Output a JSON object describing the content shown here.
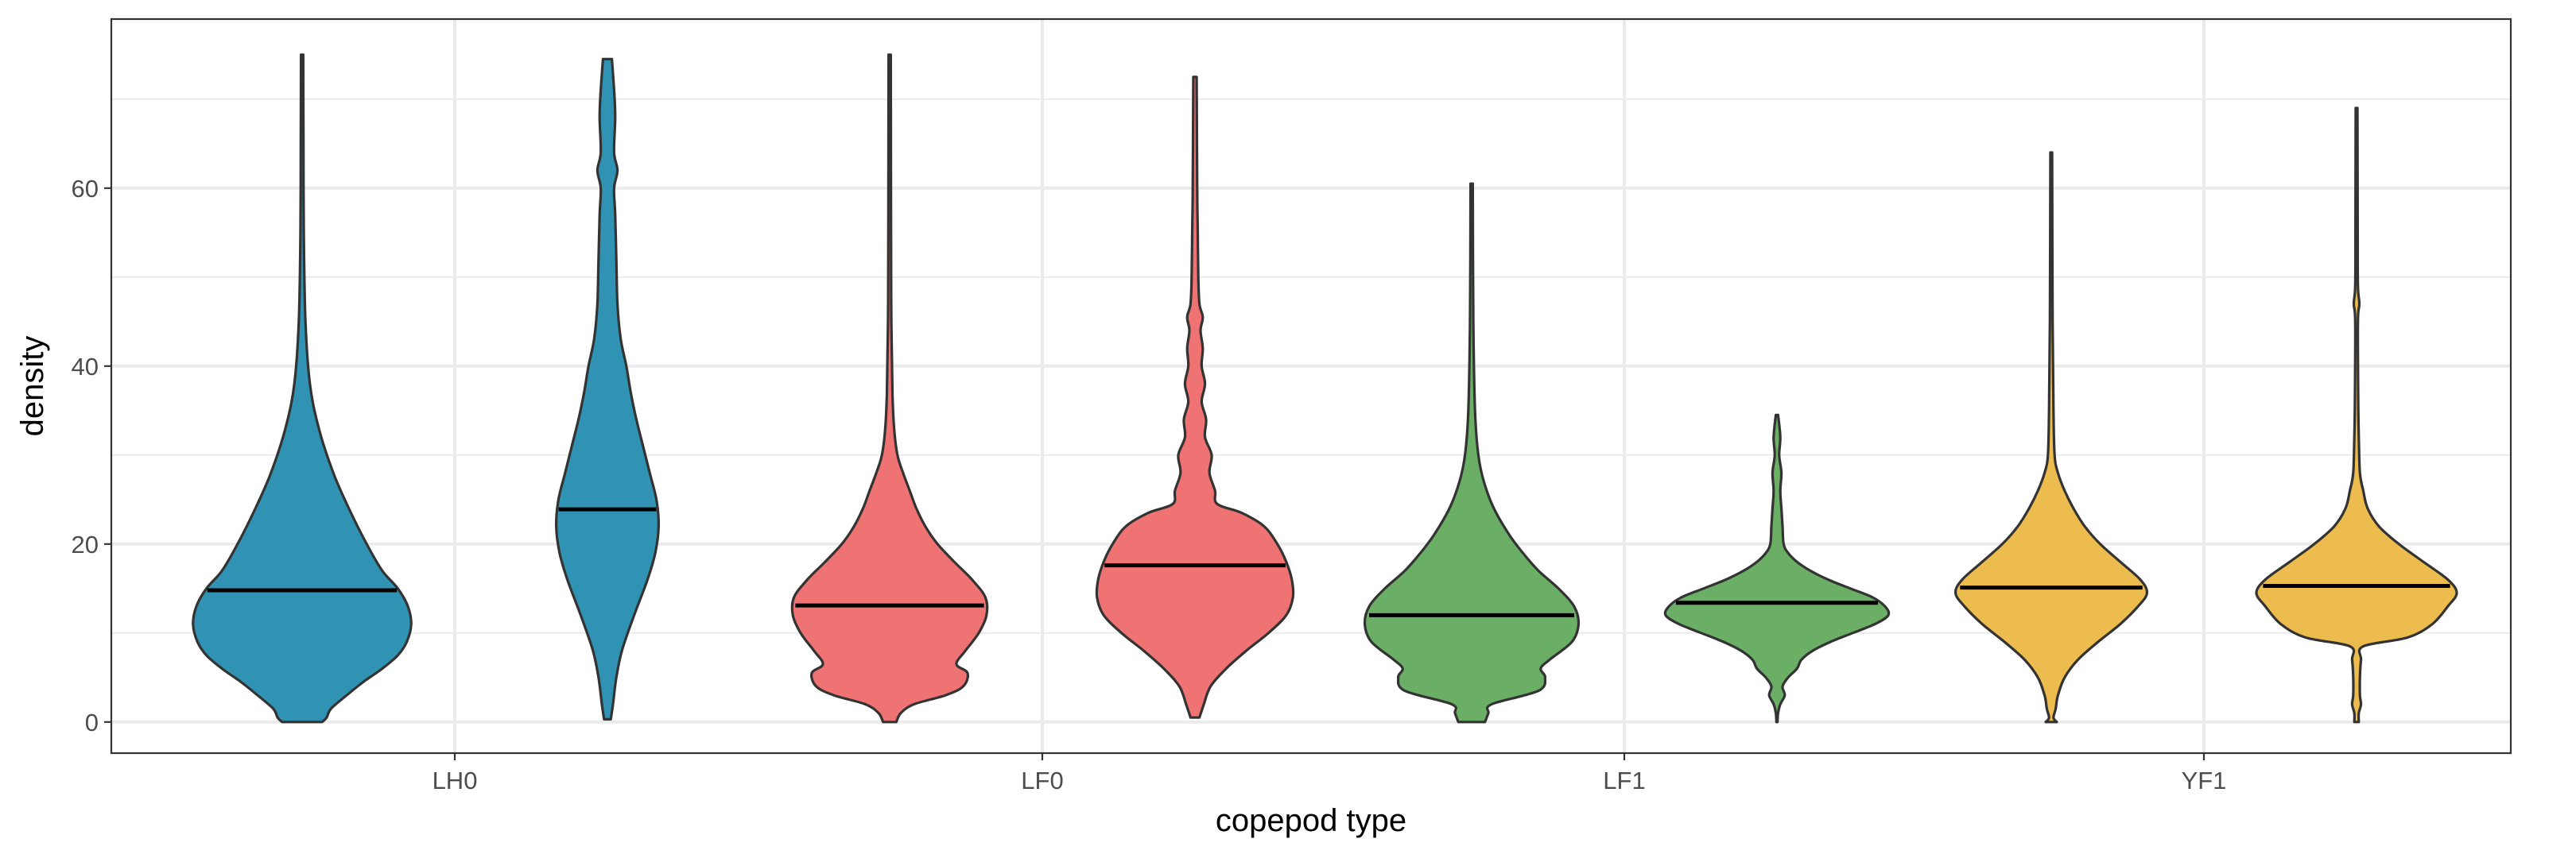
{
  "chart_data": {
    "type": "violin",
    "xlabel": "copepod type",
    "ylabel": "density",
    "categories": [
      "LH0",
      "LF0",
      "LF1",
      "YF1"
    ],
    "ylim": [
      -3.5,
      79
    ],
    "yticks": [
      0,
      20,
      40,
      60
    ],
    "ytick_labels": [
      "0",
      "20",
      "40",
      "60"
    ],
    "grid": true,
    "legend": "none",
    "violins": [
      {
        "category": "LH0",
        "offset": -1,
        "color": "#3193B3",
        "min": 0,
        "max": 75,
        "median": 14.8,
        "profile": [
          [
            0,
            0.18
          ],
          [
            0.5,
            0.22
          ],
          [
            1.5,
            0.26
          ],
          [
            3,
            0.4
          ],
          [
            4.5,
            0.55
          ],
          [
            6,
            0.72
          ],
          [
            7.5,
            0.86
          ],
          [
            9,
            0.94
          ],
          [
            11,
            0.98
          ],
          [
            13,
            0.95
          ],
          [
            15,
            0.86
          ],
          [
            17,
            0.72
          ],
          [
            20,
            0.58
          ],
          [
            24,
            0.42
          ],
          [
            28,
            0.28
          ],
          [
            33,
            0.15
          ],
          [
            38,
            0.07
          ],
          [
            45,
            0.03
          ],
          [
            55,
            0.015
          ],
          [
            65,
            0.012
          ],
          [
            75,
            0.01
          ]
        ]
      },
      {
        "category": "LH0",
        "offset": 1,
        "color": "#3193B3",
        "min": 0.3,
        "max": 74.5,
        "median": 23.9,
        "profile": [
          [
            0.3,
            0.03
          ],
          [
            2,
            0.05
          ],
          [
            5,
            0.08
          ],
          [
            8,
            0.13
          ],
          [
            12,
            0.24
          ],
          [
            16,
            0.36
          ],
          [
            19,
            0.43
          ],
          [
            22,
            0.46
          ],
          [
            25,
            0.44
          ],
          [
            28,
            0.38
          ],
          [
            31,
            0.32
          ],
          [
            34,
            0.26
          ],
          [
            37,
            0.21
          ],
          [
            40,
            0.17
          ],
          [
            43,
            0.12
          ],
          [
            47,
            0.09
          ],
          [
            52,
            0.08
          ],
          [
            57,
            0.07
          ],
          [
            60,
            0.06
          ],
          [
            62,
            0.09
          ],
          [
            64,
            0.06
          ],
          [
            68,
            0.07
          ],
          [
            71,
            0.06
          ],
          [
            74.5,
            0.04
          ]
        ]
      },
      {
        "category": "LF0",
        "offset": -1,
        "color": "#EF7373",
        "min": 0,
        "max": 75,
        "median": 13.1,
        "profile": [
          [
            0,
            0.06
          ],
          [
            1,
            0.1
          ],
          [
            2,
            0.22
          ],
          [
            3,
            0.5
          ],
          [
            4,
            0.66
          ],
          [
            5.5,
            0.7
          ],
          [
            6.5,
            0.6
          ],
          [
            8,
            0.68
          ],
          [
            10,
            0.8
          ],
          [
            12,
            0.87
          ],
          [
            14,
            0.86
          ],
          [
            16,
            0.74
          ],
          [
            18,
            0.58
          ],
          [
            20,
            0.43
          ],
          [
            22,
            0.32
          ],
          [
            24,
            0.24
          ],
          [
            26,
            0.18
          ],
          [
            28,
            0.12
          ],
          [
            30,
            0.07
          ],
          [
            33,
            0.04
          ],
          [
            37,
            0.025
          ],
          [
            45,
            0.015
          ],
          [
            55,
            0.012
          ],
          [
            75,
            0.01
          ]
        ]
      },
      {
        "category": "LF0",
        "offset": 1,
        "color": "#EF7373",
        "min": 0.5,
        "max": 72.5,
        "median": 17.6,
        "profile": [
          [
            0.5,
            0.04
          ],
          [
            2,
            0.08
          ],
          [
            4,
            0.14
          ],
          [
            6,
            0.28
          ],
          [
            8,
            0.46
          ],
          [
            10,
            0.66
          ],
          [
            12,
            0.82
          ],
          [
            14,
            0.88
          ],
          [
            16,
            0.87
          ],
          [
            18,
            0.82
          ],
          [
            20,
            0.74
          ],
          [
            22,
            0.62
          ],
          [
            23.5,
            0.42
          ],
          [
            24.5,
            0.2
          ],
          [
            26,
            0.18
          ],
          [
            28,
            0.13
          ],
          [
            30,
            0.15
          ],
          [
            32,
            0.09
          ],
          [
            34,
            0.1
          ],
          [
            36,
            0.06
          ],
          [
            38,
            0.09
          ],
          [
            40,
            0.06
          ],
          [
            42,
            0.07
          ],
          [
            44,
            0.05
          ],
          [
            45.5,
            0.07
          ],
          [
            47,
            0.04
          ],
          [
            50,
            0.03
          ],
          [
            55,
            0.025
          ],
          [
            60,
            0.02
          ],
          [
            72.5,
            0.015
          ]
        ]
      },
      {
        "category": "LF1",
        "offset": -1,
        "color": "#6AAF65",
        "min": 0,
        "max": 60.5,
        "median": 12,
        "profile": [
          [
            0,
            0.12
          ],
          [
            1,
            0.15
          ],
          [
            2,
            0.18
          ],
          [
            3.5,
            0.6
          ],
          [
            5,
            0.66
          ],
          [
            6,
            0.62
          ],
          [
            7,
            0.7
          ],
          [
            9,
            0.9
          ],
          [
            11,
            0.96
          ],
          [
            13,
            0.92
          ],
          [
            15,
            0.78
          ],
          [
            17,
            0.6
          ],
          [
            19,
            0.46
          ],
          [
            21,
            0.34
          ],
          [
            24,
            0.2
          ],
          [
            27,
            0.11
          ],
          [
            30,
            0.06
          ],
          [
            35,
            0.03
          ],
          [
            45,
            0.015
          ],
          [
            60.5,
            0.01
          ]
        ]
      },
      {
        "category": "LF1",
        "offset": 1,
        "color": "#6AAF65",
        "min": 0,
        "max": 34.5,
        "median": 13.4,
        "profile": [
          [
            0,
            0.005
          ],
          [
            1,
            0.01
          ],
          [
            2,
            0.03
          ],
          [
            3,
            0.07
          ],
          [
            4,
            0.05
          ],
          [
            5,
            0.1
          ],
          [
            6,
            0.18
          ],
          [
            7,
            0.22
          ],
          [
            8,
            0.32
          ],
          [
            9,
            0.48
          ],
          [
            10,
            0.68
          ],
          [
            11,
            0.88
          ],
          [
            12,
            1.0
          ],
          [
            13,
            0.97
          ],
          [
            14,
            0.86
          ],
          [
            15,
            0.66
          ],
          [
            16,
            0.46
          ],
          [
            17,
            0.3
          ],
          [
            18,
            0.18
          ],
          [
            19,
            0.1
          ],
          [
            20,
            0.06
          ],
          [
            22,
            0.05
          ],
          [
            24,
            0.04
          ],
          [
            26,
            0.03
          ],
          [
            28,
            0.04
          ],
          [
            30,
            0.02
          ],
          [
            32,
            0.03
          ],
          [
            34.5,
            0.01
          ]
        ]
      },
      {
        "category": "YF1",
        "offset": -1,
        "color": "#EDBC4F",
        "min": 0,
        "max": 64,
        "median": 15.1,
        "profile": [
          [
            0,
            0.05
          ],
          [
            0.5,
            0.02
          ],
          [
            1.5,
            0.04
          ],
          [
            3,
            0.06
          ],
          [
            5,
            0.12
          ],
          [
            7,
            0.24
          ],
          [
            9,
            0.42
          ],
          [
            11,
            0.62
          ],
          [
            13,
            0.78
          ],
          [
            14.5,
            0.86
          ],
          [
            16,
            0.8
          ],
          [
            18,
            0.62
          ],
          [
            20,
            0.44
          ],
          [
            22,
            0.3
          ],
          [
            24,
            0.2
          ],
          [
            26,
            0.12
          ],
          [
            28,
            0.06
          ],
          [
            30,
            0.03
          ],
          [
            35,
            0.02
          ],
          [
            45,
            0.012
          ],
          [
            64,
            0.008
          ]
        ]
      },
      {
        "category": "YF1",
        "offset": 1,
        "color": "#EDBC4F",
        "min": 0,
        "max": 69,
        "median": 15.3,
        "profile": [
          [
            0,
            0.02
          ],
          [
            1,
            0.02
          ],
          [
            2,
            0.04
          ],
          [
            3,
            0.03
          ],
          [
            5,
            0.03
          ],
          [
            7,
            0.04
          ],
          [
            8.5,
            0.06
          ],
          [
            9.5,
            0.46
          ],
          [
            11,
            0.68
          ],
          [
            13,
            0.82
          ],
          [
            14.5,
            0.9
          ],
          [
            16,
            0.82
          ],
          [
            18,
            0.6
          ],
          [
            20,
            0.38
          ],
          [
            22,
            0.2
          ],
          [
            24,
            0.1
          ],
          [
            26,
            0.06
          ],
          [
            28,
            0.03
          ],
          [
            32,
            0.02
          ],
          [
            36,
            0.015
          ],
          [
            45,
            0.012
          ],
          [
            47,
            0.025
          ],
          [
            49,
            0.012
          ],
          [
            55,
            0.01
          ],
          [
            69,
            0.008
          ]
        ]
      }
    ]
  }
}
